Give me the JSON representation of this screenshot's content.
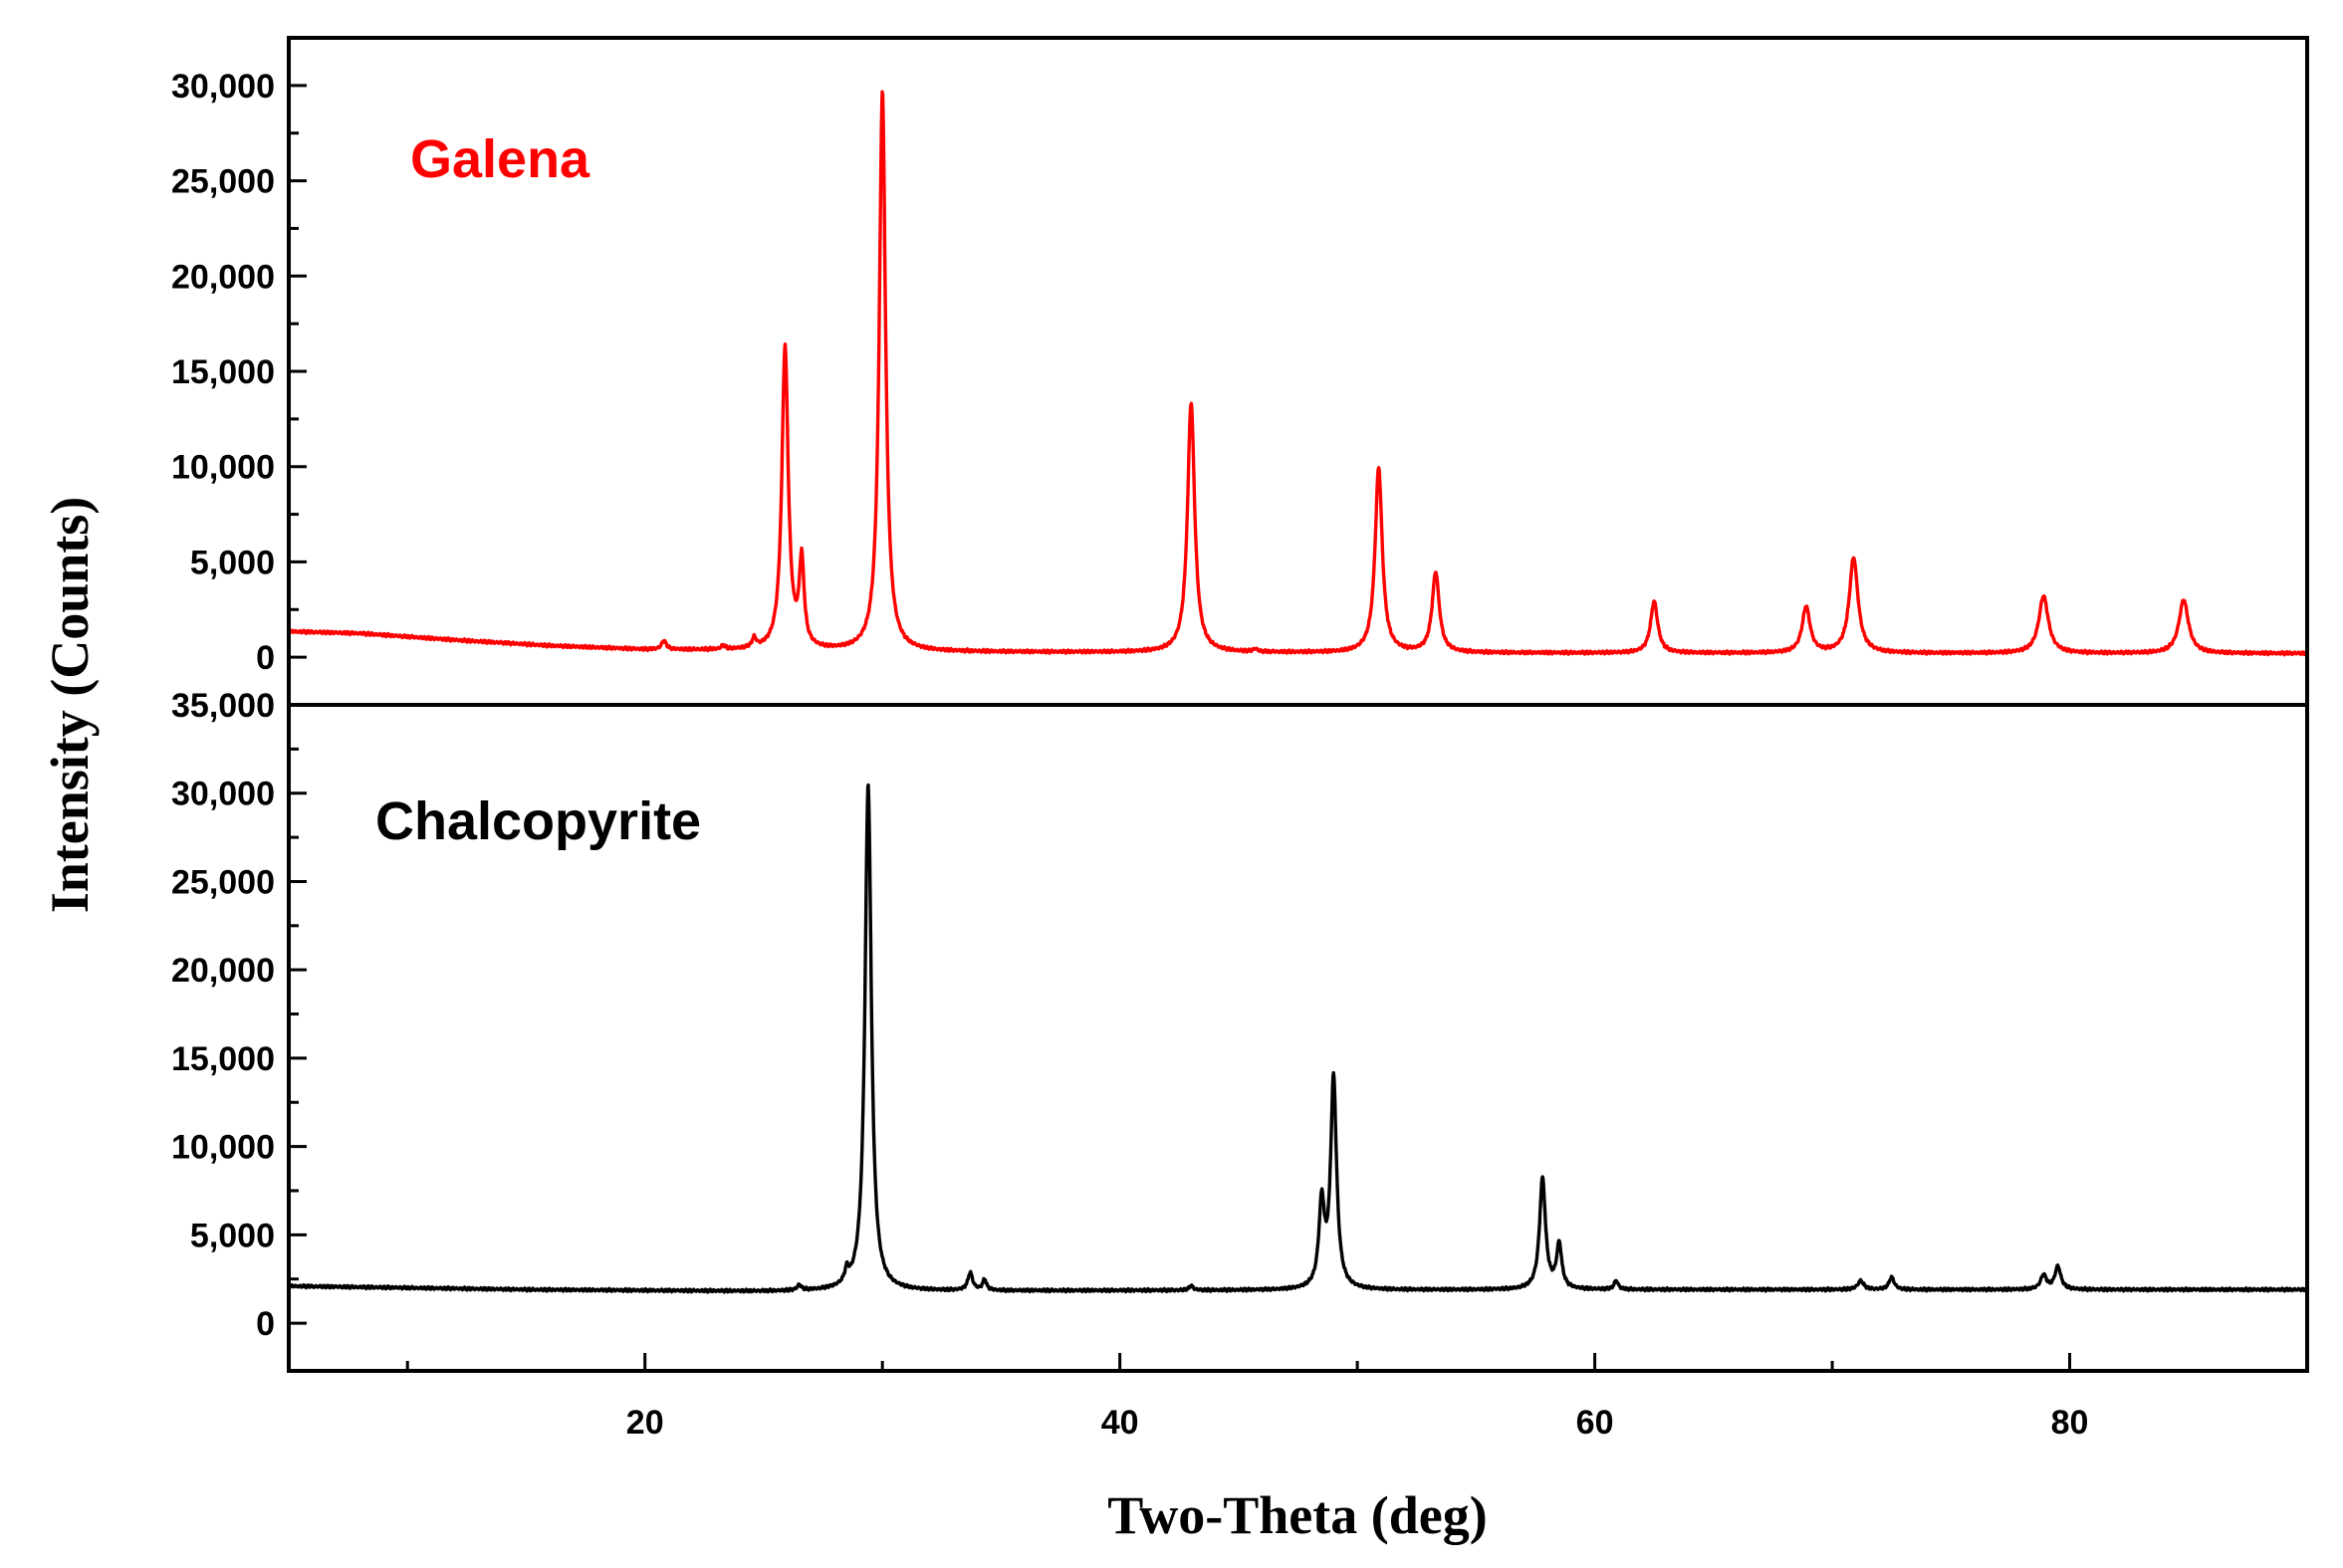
{
  "chart_data": {
    "type": "line",
    "xlabel": "Two-Theta (deg)",
    "ylabel": "Intensity (Counts)",
    "xlim": [
      5,
      90
    ],
    "x_ticks": [
      "20",
      "40",
      "60",
      "80"
    ],
    "grid": false,
    "legend": "none",
    "panels": [
      {
        "label": "Galena",
        "color": "#ff0000",
        "ylim": [
          -2500,
          32500
        ],
        "y_ticks": [
          "0",
          "5,000",
          "10,000",
          "15,000",
          "20,000",
          "25,000",
          "30,000"
        ],
        "baseline": [
          [
            5,
            1350
          ],
          [
            8,
            1250
          ],
          [
            12,
            900
          ],
          [
            16,
            600
          ],
          [
            20,
            400
          ],
          [
            30,
            280
          ],
          [
            50,
            230
          ],
          [
            70,
            210
          ],
          [
            90,
            200
          ]
        ],
        "peaks": [
          {
            "x": 20.8,
            "y": 450,
            "w": 0.12
          },
          {
            "x": 23.3,
            "y": 200,
            "w": 0.1
          },
          {
            "x": 24.6,
            "y": 500,
            "w": 0.1
          },
          {
            "x": 25.9,
            "y": 15900,
            "w": 0.16
          },
          {
            "x": 26.6,
            "y": 4500,
            "w": 0.12
          },
          {
            "x": 30.0,
            "y": 29400,
            "w": 0.16
          },
          {
            "x": 43.0,
            "y": 13100,
            "w": 0.18
          },
          {
            "x": 45.7,
            "y": 150,
            "w": 0.1
          },
          {
            "x": 50.9,
            "y": 9700,
            "w": 0.18
          },
          {
            "x": 53.3,
            "y": 4200,
            "w": 0.18
          },
          {
            "x": 62.5,
            "y": 2700,
            "w": 0.18
          },
          {
            "x": 68.9,
            "y": 2400,
            "w": 0.2
          },
          {
            "x": 70.9,
            "y": 5000,
            "w": 0.22
          },
          {
            "x": 78.9,
            "y": 3000,
            "w": 0.24
          },
          {
            "x": 84.8,
            "y": 2800,
            "w": 0.24
          }
        ]
      },
      {
        "label": "Chalcopyrite",
        "color": "#000000",
        "ylim": [
          -2700,
          35000
        ],
        "y_ticks": [
          "0",
          "5,000",
          "10,000",
          "15,000",
          "20,000",
          "25,000",
          "30,000",
          "35,000"
        ],
        "baseline": [
          [
            5,
            2100
          ],
          [
            15,
            1900
          ],
          [
            25,
            1800
          ],
          [
            40,
            1850
          ],
          [
            60,
            1900
          ],
          [
            90,
            1900
          ]
        ],
        "peaks": [
          {
            "x": 26.5,
            "y": 300,
            "w": 0.1
          },
          {
            "x": 28.5,
            "y": 700,
            "w": 0.1
          },
          {
            "x": 29.4,
            "y": 28700,
            "w": 0.16
          },
          {
            "x": 33.7,
            "y": 1000,
            "w": 0.12
          },
          {
            "x": 34.3,
            "y": 600,
            "w": 0.1
          },
          {
            "x": 43.0,
            "y": 250,
            "w": 0.1
          },
          {
            "x": 48.5,
            "y": 4700,
            "w": 0.14
          },
          {
            "x": 49.0,
            "y": 11900,
            "w": 0.15
          },
          {
            "x": 57.8,
            "y": 6300,
            "w": 0.15
          },
          {
            "x": 58.5,
            "y": 2500,
            "w": 0.13
          },
          {
            "x": 60.9,
            "y": 500,
            "w": 0.1
          },
          {
            "x": 71.2,
            "y": 500,
            "w": 0.15
          },
          {
            "x": 72.5,
            "y": 700,
            "w": 0.13
          },
          {
            "x": 78.9,
            "y": 800,
            "w": 0.15
          },
          {
            "x": 79.5,
            "y": 1300,
            "w": 0.15
          }
        ]
      }
    ]
  }
}
